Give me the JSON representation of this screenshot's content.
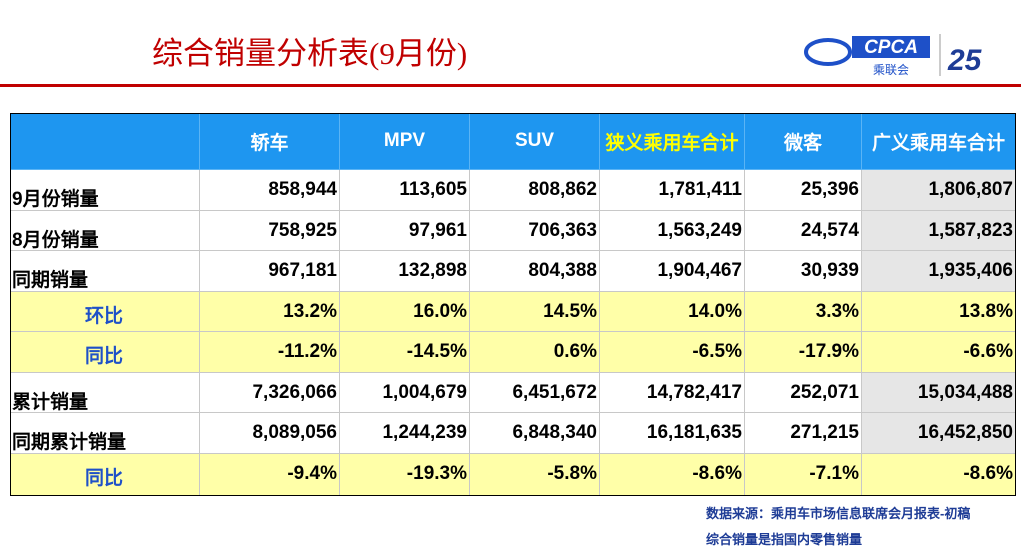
{
  "header": {
    "title": "综合销量分析表(9月份)",
    "logo": {
      "cpca": "CPCA",
      "name": "乘联会",
      "anniversary": "25"
    }
  },
  "table": {
    "columns": [
      "轿车",
      "MPV",
      "SUV",
      "狭义乘用车合计",
      "微客",
      "广义乘用车合计"
    ],
    "highlight_column": 3,
    "rows": [
      {
        "label": "9月份销量",
        "highlight": false,
        "values": [
          "858,944",
          "113,605",
          "808,862",
          "1,781,411",
          "25,396",
          "1,806,807"
        ]
      },
      {
        "label": "8月份销量",
        "highlight": false,
        "values": [
          "758,925",
          "97,961",
          "706,363",
          "1,563,249",
          "24,574",
          "1,587,823"
        ]
      },
      {
        "label": "同期销量",
        "highlight": false,
        "values": [
          "967,181",
          "132,898",
          "804,388",
          "1,904,467",
          "30,939",
          "1,935,406"
        ]
      },
      {
        "label": "环比",
        "highlight": true,
        "values": [
          "13.2%",
          "16.0%",
          "14.5%",
          "14.0%",
          "3.3%",
          "13.8%"
        ]
      },
      {
        "label": "同比",
        "highlight": true,
        "values": [
          "-11.2%",
          "-14.5%",
          "0.6%",
          "-6.5%",
          "-17.9%",
          "-6.6%"
        ]
      },
      {
        "label": "累计销量",
        "highlight": false,
        "values": [
          "7,326,066",
          "1,004,679",
          "6,451,672",
          "14,782,417",
          "252,071",
          "15,034,488"
        ]
      },
      {
        "label": "同期累计销量",
        "highlight": false,
        "values": [
          "8,089,056",
          "1,244,239",
          "6,848,340",
          "16,181,635",
          "271,215",
          "16,452,850"
        ]
      },
      {
        "label": "同比",
        "highlight": true,
        "values": [
          "-9.4%",
          "-19.3%",
          "-5.8%",
          "-8.6%",
          "-7.1%",
          "-8.6%"
        ]
      }
    ]
  },
  "footer": {
    "source": "数据来源：乘用车市场信息联席会月报表-初稿",
    "note": "综合销量是指国内零售销量"
  }
}
